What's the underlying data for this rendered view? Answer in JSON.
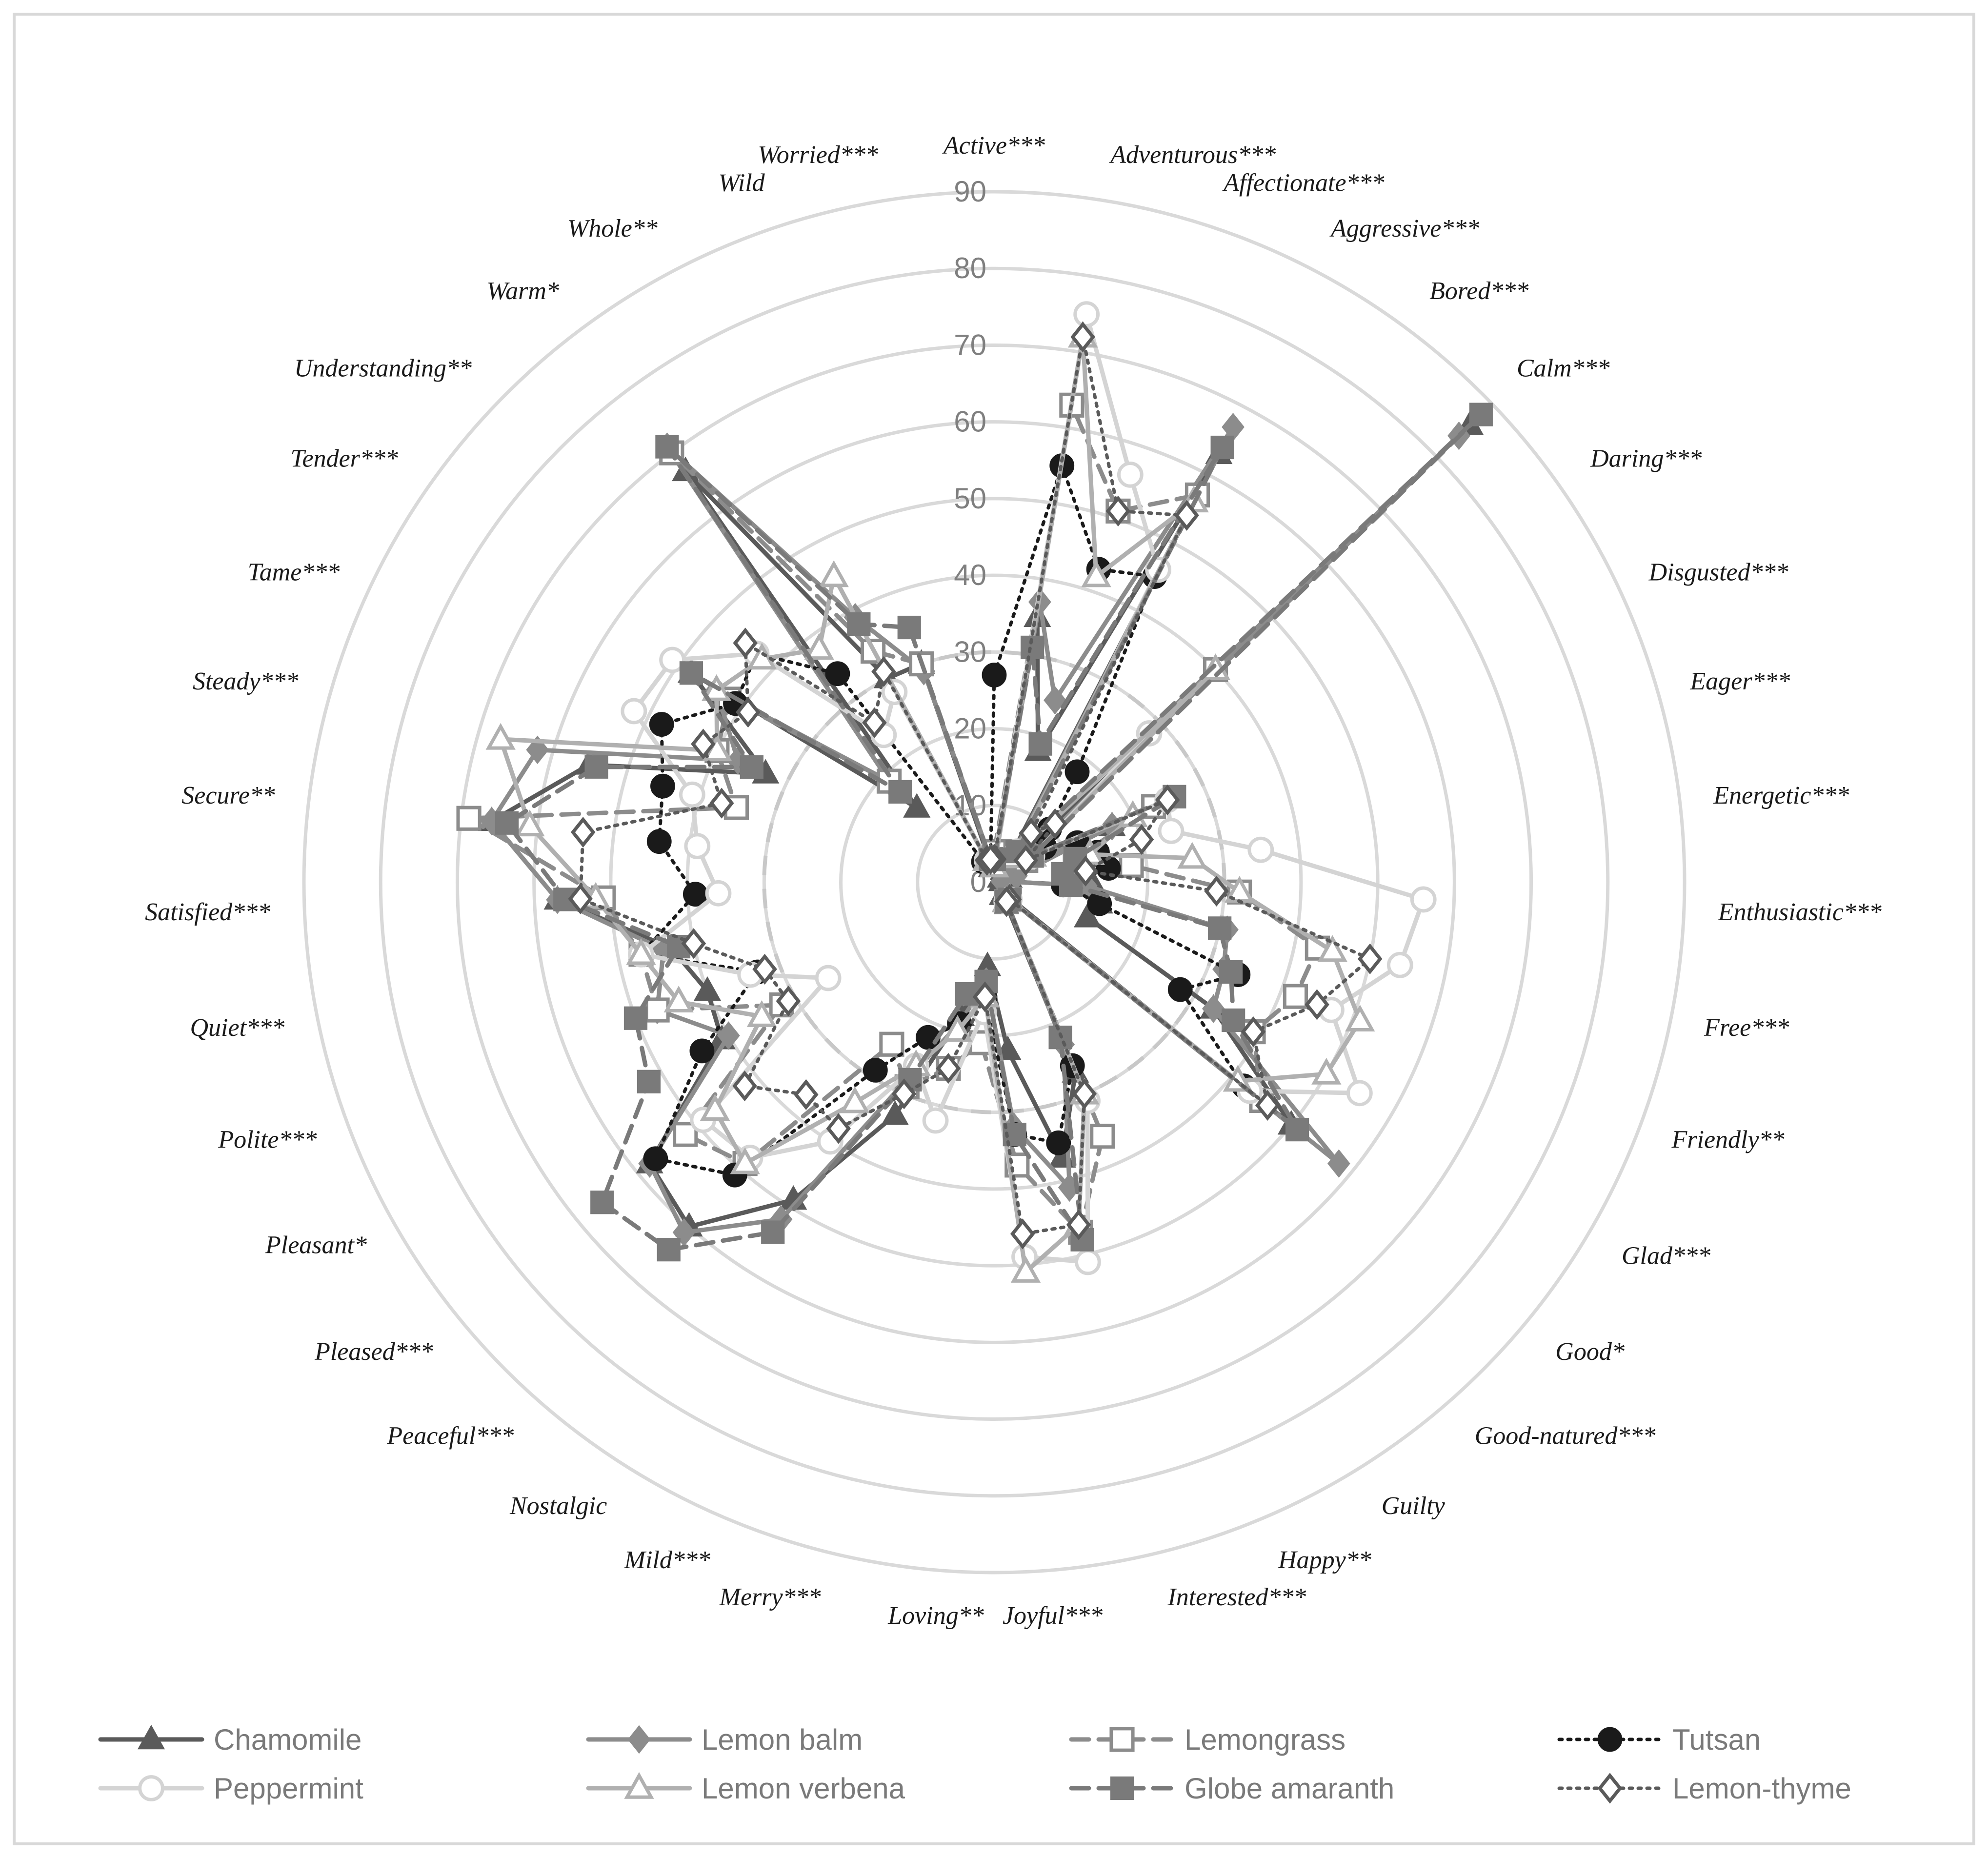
{
  "chart_data": {
    "type": "radar",
    "title": "",
    "ylim": [
      0,
      90
    ],
    "ticks": [
      0,
      10,
      20,
      30,
      40,
      50,
      60,
      70,
      80,
      90
    ],
    "reference_circle_value": 30,
    "grid": true,
    "legend_position": "bottom",
    "categories": [
      "Active***",
      "Adventurous***",
      "Affectionate***",
      "Aggressive***",
      "Bored***",
      "Calm***",
      "Daring***",
      "Disgusted***",
      "Eager***",
      "Energetic***",
      "Enthusiastic***",
      "Free***",
      "Friendly**",
      "Glad***",
      "Good*",
      "Good-natured***",
      "Guilty",
      "Happy**",
      "Interested***",
      "Joyful***",
      "Loving**",
      "Merry***",
      "Mild***",
      "Nostalgic",
      "Peaceful***",
      "Pleased***",
      "Pleasant*",
      "Polite***",
      "Quiet***",
      "Satisfied***",
      "Secure**",
      "Steady***",
      "Tame***",
      "Tender***",
      "Understanding**",
      "Warm*",
      "Whole**",
      "Wild",
      "Worried***"
    ],
    "series": [
      {
        "name": "Chamomile",
        "color": "#5a5a5a",
        "line": "solid",
        "marker": "triangle-filled",
        "values": [
          3,
          35,
          18,
          63,
          2,
          86,
          1,
          17,
          2,
          1,
          13,
          14,
          13,
          33,
          50,
          2,
          2,
          27,
          37,
          22,
          11,
          18,
          33,
          49,
          60,
          58,
          41,
          40,
          43,
          57,
          66,
          55,
          33,
          48,
          14,
          67,
          30,
          30,
          2
        ]
      },
      {
        "name": "Lemon balm",
        "color": "#8c8c8c",
        "line": "solid",
        "marker": "diamond-filled",
        "values": [
          3,
          37,
          25,
          67,
          3,
          84,
          3,
          17,
          3,
          1,
          12,
          31,
          32,
          33,
          58,
          3,
          3,
          23,
          41,
          32,
          13,
          19,
          27,
          52,
          61,
          58,
          40,
          47,
          44,
          57,
          66,
          62,
          37,
          44,
          19,
          71,
          39,
          29,
          3
        ]
      },
      {
        "name": "Lemongrass",
        "color": "#8c8c8c",
        "line": "dash",
        "marker": "square-open",
        "values": [
          4,
          63,
          51,
          57,
          5,
          40,
          5,
          23,
          11,
          18,
          32,
          43,
          42,
          39,
          45,
          3,
          3,
          36,
          47,
          37,
          21,
          25,
          29,
          25,
          49,
          52,
          32,
          47,
          47,
          51,
          69,
          35,
          40,
          42,
          19,
          70,
          34,
          30,
          3
        ]
      },
      {
        "name": "Tutsan",
        "color": "#1a1a1a",
        "line": "dot",
        "marker": "circle-filled",
        "values": [
          27,
          55,
          43,
          45,
          18,
          10,
          8,
          12,
          14,
          15,
          9,
          14,
          34,
          28,
          42,
          3,
          3,
          26,
          35,
          33,
          15,
          19,
          22,
          29,
          51,
          57,
          44,
          33,
          47,
          39,
          44,
          45,
          48,
          41,
          43,
          34,
          3,
          3,
          3
        ]
      },
      {
        "name": "Peppermint",
        "color": "#d4d4d4",
        "line": "solid",
        "marker": "circle-open",
        "values": [
          3,
          75,
          56,
          46,
          5,
          28,
          6,
          25,
          24,
          35,
          56,
          54,
          47,
          55,
          43,
          3,
          3,
          31,
          51,
          49,
          17,
          32,
          26,
          40,
          48,
          49,
          25,
          34,
          47,
          36,
          39,
          41,
          52,
          51,
          43,
          24,
          28,
          3,
          3
        ]
      },
      {
        "name": "Lemon verbena",
        "color": "#b0b0b0",
        "line": "solid",
        "marker": "triangle-open",
        "values": [
          2,
          72,
          42,
          56,
          4,
          40,
          6,
          20,
          13,
          26,
          32,
          45,
          51,
          50,
          41,
          3,
          3,
          30,
          46,
          51,
          15,
          20,
          26,
          34,
          49,
          47,
          35,
          44,
          47,
          52,
          61,
          67,
          40,
          44,
          42,
          38,
          45,
          3,
          3
        ]
      },
      {
        "name": "Globe amaranth",
        "color": "#7a7a7a",
        "line": "dash",
        "marker": "square-filled",
        "values": [
          3,
          31,
          19,
          64,
          5,
          88,
          6,
          26,
          11,
          9,
          10,
          30,
          33,
          36,
          51,
          3,
          3,
          22,
          48,
          33,
          13,
          15,
          28,
          54,
          64,
          66,
          52,
          50,
          42,
          56,
          64,
          54,
          35,
          48,
          17,
          71,
          38,
          35,
          3
        ]
      },
      {
        "name": "Lemon-thyme",
        "color": "#5a5a5a",
        "line": "dot",
        "marker": "diamond-open",
        "values": [
          3,
          72,
          51,
          54,
          8,
          11,
          5,
          25,
          20,
          12,
          29,
          50,
          45,
          39,
          46,
          3,
          3,
          30,
          46,
          46,
          15,
          25,
          30,
          38,
          37,
          42,
          31,
          32,
          40,
          54,
          54,
          37,
          42,
          39,
          45,
          26,
          31,
          3,
          3
        ]
      }
    ]
  }
}
